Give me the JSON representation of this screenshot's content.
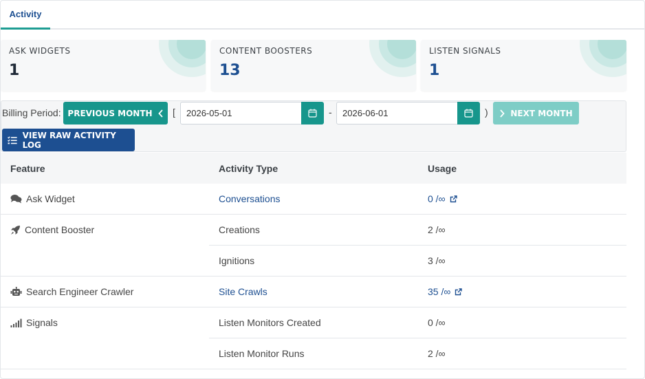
{
  "tabs": [
    {
      "label": "Activity",
      "active": true
    }
  ],
  "stats": [
    {
      "label": "ASK WIDGETS",
      "value": "1",
      "value_color": "#1f2937"
    },
    {
      "label": "CONTENT BOOSTERS",
      "value": "13",
      "value_color": "#1d4f91"
    },
    {
      "label": "LISTEN SIGNALS",
      "value": "1",
      "value_color": "#1d4f91"
    }
  ],
  "billing": {
    "label": "Billing Period:",
    "previous_label": "PREVIOUS MONTH",
    "open_bracket": "[",
    "start_date": "2026-05-01",
    "separator": "-",
    "end_date": "2026-06-01",
    "close_bracket": ")",
    "next_label": "NEXT MONTH",
    "raw_log_label": "VIEW RAW ACTIVITY LOG"
  },
  "table": {
    "headers": [
      "Feature",
      "Activity Type",
      "Usage"
    ],
    "features": [
      {
        "name": "Ask Widget",
        "icon": "comments-icon"
      },
      {
        "name": "Content Booster",
        "icon": "rocket-icon"
      },
      {
        "name": "Search Engineer Crawler",
        "icon": "robot-icon"
      },
      {
        "name": "Signals",
        "icon": "signal-icon"
      }
    ],
    "rows": [
      {
        "activity": "Conversations",
        "usage": "0 /∞",
        "link": true
      },
      {
        "activity": "Creations",
        "usage": "2 /∞",
        "link": false
      },
      {
        "activity": "Ignitions",
        "usage": "3 /∞",
        "link": false
      },
      {
        "activity": "Site Crawls",
        "usage": "35 /∞",
        "link": true
      },
      {
        "activity": "Listen Monitors Created",
        "usage": "0 /∞",
        "link": false
      },
      {
        "activity": "Listen Monitor Runs",
        "usage": "2 /∞",
        "link": false
      }
    ]
  },
  "colors": {
    "teal": "#17968c",
    "navy": "#1d4f91"
  }
}
